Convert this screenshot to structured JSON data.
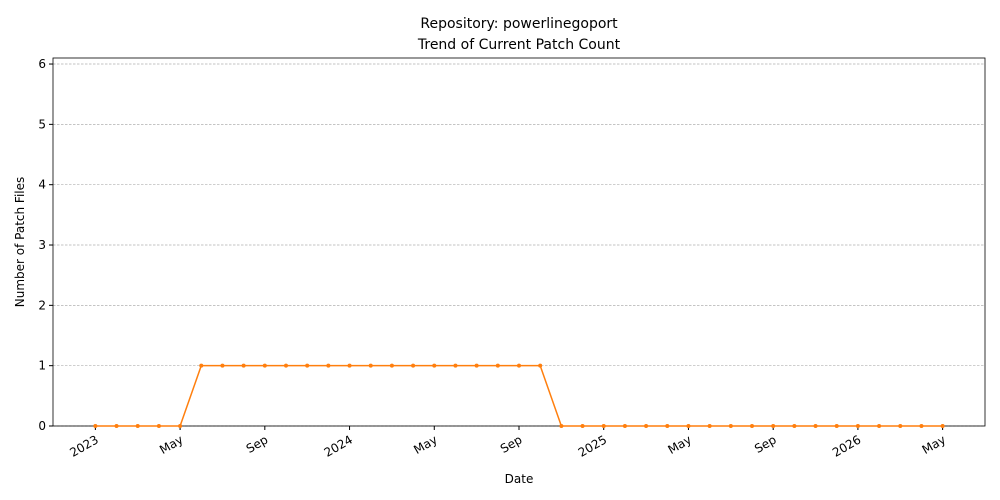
{
  "chart_data": {
    "type": "line",
    "title": "Repository: powerlinegoport",
    "subtitle": "Trend of Current Patch Count",
    "xlabel": "Date",
    "ylabel": "Number of Patch Files",
    "x": [
      "2023-01",
      "2023-02",
      "2023-03",
      "2023-04",
      "2023-05",
      "2023-06",
      "2023-07",
      "2023-08",
      "2023-09",
      "2023-10",
      "2023-11",
      "2023-12",
      "2024-01",
      "2024-02",
      "2024-03",
      "2024-04",
      "2024-05",
      "2024-06",
      "2024-07",
      "2024-08",
      "2024-09",
      "2024-10",
      "2024-11",
      "2024-12",
      "2025-01",
      "2025-02",
      "2025-03",
      "2025-04",
      "2025-05",
      "2025-06",
      "2025-07",
      "2025-08",
      "2025-09",
      "2025-10",
      "2025-11",
      "2025-12",
      "2026-01",
      "2026-02",
      "2026-03",
      "2026-04",
      "2026-05"
    ],
    "values": [
      0,
      0,
      0,
      0,
      0,
      1,
      1,
      1,
      1,
      1,
      1,
      1,
      1,
      1,
      1,
      1,
      1,
      1,
      1,
      1,
      1,
      1,
      0,
      0,
      0,
      0,
      0,
      0,
      0,
      0,
      0,
      0,
      0,
      0,
      0,
      0,
      0,
      0,
      0,
      0,
      0
    ],
    "color": "#ff7f0e",
    "xlim": [
      "2022-11",
      "2026-07"
    ],
    "xticks": [
      {
        "value": "2023-01",
        "label": "2023"
      },
      {
        "value": "2023-05",
        "label": "May"
      },
      {
        "value": "2023-09",
        "label": "Sep"
      },
      {
        "value": "2024-01",
        "label": "2024"
      },
      {
        "value": "2024-05",
        "label": "May"
      },
      {
        "value": "2024-09",
        "label": "Sep"
      },
      {
        "value": "2025-01",
        "label": "2025"
      },
      {
        "value": "2025-05",
        "label": "May"
      },
      {
        "value": "2025-09",
        "label": "Sep"
      },
      {
        "value": "2026-01",
        "label": "2026"
      },
      {
        "value": "2026-05",
        "label": "May"
      }
    ],
    "ylim": [
      0,
      6.1
    ],
    "yticks": [
      0,
      1,
      2,
      3,
      4,
      5,
      6
    ],
    "grid": true
  }
}
